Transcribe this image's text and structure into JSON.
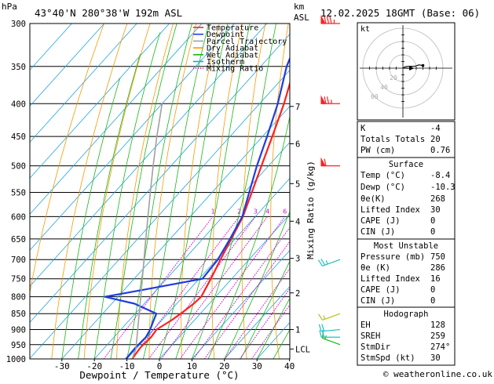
{
  "header": {
    "location": "43°40'N  280°38'W  192m  ASL",
    "datetime": "12.02.2025  18GMT  (Base: 06)",
    "hpa_unit": "hPa",
    "km_unit": "km",
    "asl_unit": "ASL"
  },
  "chart_data": {
    "type": "line",
    "title": "",
    "xlabel": "Dewpoint / Temperature (°C)",
    "ylabel": "Mixing Ratio (g/kg)",
    "xlim": [
      -40,
      40
    ],
    "ylim": [
      1000,
      300
    ],
    "pressure_ticks": [
      300,
      350,
      400,
      450,
      500,
      550,
      600,
      650,
      700,
      750,
      800,
      850,
      900,
      950,
      1000
    ],
    "temp_ticks": [
      -30,
      -20,
      -10,
      0,
      10,
      20,
      30,
      40
    ],
    "km_ticks": [
      {
        "label": "7",
        "p": 404
      },
      {
        "label": "6",
        "p": 462
      },
      {
        "label": "5",
        "p": 533
      },
      {
        "label": "4",
        "p": 610
      },
      {
        "label": "3",
        "p": 697
      },
      {
        "label": "2",
        "p": 789
      },
      {
        "label": "1",
        "p": 900
      },
      {
        "label": "LCL",
        "p": 965
      }
    ],
    "mixing_ratio_labels": [
      "1",
      "2",
      "3",
      "4",
      "6",
      "8",
      "10",
      "15",
      "20",
      "25"
    ],
    "mixing_ratio_values": [
      1,
      2,
      3,
      4,
      6,
      8,
      10,
      15,
      20,
      25
    ],
    "legend": [
      {
        "name": "Temperature",
        "color": "#ff2020",
        "dash": "solid"
      },
      {
        "name": "Dewpoint",
        "color": "#1f3ce0",
        "dash": "solid"
      },
      {
        "name": "Parcel Trajectory",
        "color": "#a0a0a0",
        "dash": "solid"
      },
      {
        "name": "Dry Adiabat",
        "color": "#f59a00",
        "dash": "solid"
      },
      {
        "name": "Wet Adiabat",
        "color": "#16b816",
        "dash": "solid"
      },
      {
        "name": "Isotherm",
        "color": "#1aa3e6",
        "dash": "solid"
      },
      {
        "name": "Mixing Ratio",
        "color": "#d000d0",
        "dash": "dotted"
      }
    ],
    "series": [
      {
        "name": "Temperature",
        "color": "#ff2020",
        "points": [
          [
            1000,
            -8.4
          ],
          [
            960,
            -9.0
          ],
          [
            925,
            -8.6
          ],
          [
            900,
            -9.0
          ],
          [
            870,
            -7.0
          ],
          [
            850,
            -6.0
          ],
          [
            820,
            -4.8
          ],
          [
            800,
            -4.4
          ],
          [
            750,
            -6.4
          ],
          [
            700,
            -8.8
          ],
          [
            650,
            -11.2
          ],
          [
            600,
            -13.8
          ],
          [
            550,
            -17.8
          ],
          [
            500,
            -22.2
          ],
          [
            450,
            -27.0
          ],
          [
            400,
            -32.5
          ],
          [
            350,
            -39.5
          ],
          [
            300,
            -47.8
          ]
        ]
      },
      {
        "name": "Dewpoint",
        "color": "#1f3ce0",
        "points": [
          [
            1000,
            -10.3
          ],
          [
            960,
            -10.5
          ],
          [
            925,
            -10.2
          ],
          [
            900,
            -11.0
          ],
          [
            870,
            -12.5
          ],
          [
            850,
            -13.5
          ],
          [
            820,
            -23.0
          ],
          [
            800,
            -34.0
          ],
          [
            780,
            -24.0
          ],
          [
            750,
            -9.0
          ],
          [
            700,
            -9.6
          ],
          [
            650,
            -11.6
          ],
          [
            600,
            -14.0
          ],
          [
            550,
            -18.6
          ],
          [
            500,
            -23.6
          ],
          [
            450,
            -28.6
          ],
          [
            400,
            -34.4
          ],
          [
            350,
            -42.0
          ],
          [
            300,
            -48.6
          ]
        ]
      },
      {
        "name": "Parcel Trajectory",
        "color": "#a0a0a0",
        "points": [
          [
            1000,
            -8.4
          ],
          [
            965,
            -10.0
          ],
          [
            900,
            -14.8
          ],
          [
            850,
            -18.8
          ],
          [
            800,
            -23.0
          ],
          [
            750,
            -27.5
          ],
          [
            700,
            -32.3
          ],
          [
            650,
            -37.5
          ],
          [
            600,
            -43.0
          ],
          [
            550,
            -49.0
          ],
          [
            500,
            -55.5
          ],
          [
            450,
            -62.5
          ],
          [
            400,
            -70.0
          ]
        ]
      }
    ]
  },
  "wind_barbs": [
    {
      "p": 950,
      "dir": 290,
      "spd": 15,
      "color": "#16b816"
    },
    {
      "p": 925,
      "dir": 270,
      "spd": 20,
      "color": "#1fc0c0"
    },
    {
      "p": 900,
      "dir": 265,
      "spd": 20,
      "color": "#1fc0c0"
    },
    {
      "p": 850,
      "dir": 250,
      "spd": 15,
      "color": "#b0c020"
    },
    {
      "p": 700,
      "dir": 250,
      "spd": 25,
      "color": "#1fc0c0"
    },
    {
      "p": 500,
      "dir": 270,
      "spd": 60,
      "color": "#ff2020"
    },
    {
      "p": 400,
      "dir": 270,
      "spd": 75,
      "color": "#ff2020"
    },
    {
      "p": 300,
      "dir": 270,
      "spd": 85,
      "color": "#ff2020"
    }
  ],
  "hodograph": {
    "label": "kt",
    "rings": [
      "20",
      "40",
      "60"
    ],
    "ring_kts": [
      20,
      40,
      60
    ],
    "trace": [
      [
        0,
        0
      ],
      [
        3,
        2
      ],
      [
        8,
        3
      ],
      [
        18,
        3
      ],
      [
        24,
        5
      ],
      [
        30,
        4
      ]
    ],
    "storm": [
      5,
      0
    ]
  },
  "indices": [
    {
      "label": "K",
      "value": "-4"
    },
    {
      "label": "Totals Totals",
      "value": "20"
    },
    {
      "label": "PW (cm)",
      "value": "0.76"
    }
  ],
  "surface": {
    "title": "Surface",
    "rows": [
      {
        "label": "Temp (°C)",
        "value": "-8.4"
      },
      {
        "label": "Dewp (°C)",
        "value": "-10.3"
      },
      {
        "label": "θe(K)",
        "value": "268"
      },
      {
        "label": "Lifted Index",
        "value": "30"
      },
      {
        "label": "CAPE (J)",
        "value": "0"
      },
      {
        "label": "CIN (J)",
        "value": "0"
      }
    ]
  },
  "most_unstable": {
    "title": "Most Unstable",
    "rows": [
      {
        "label": "Pressure (mb)",
        "value": "750"
      },
      {
        "label": "θe (K)",
        "value": "286"
      },
      {
        "label": "Lifted Index",
        "value": "16"
      },
      {
        "label": "CAPE (J)",
        "value": "0"
      },
      {
        "label": "CIN (J)",
        "value": "0"
      }
    ]
  },
  "hodograph_table": {
    "title": "Hodograph",
    "rows": [
      {
        "label": "EH",
        "value": "128"
      },
      {
        "label": "SREH",
        "value": "259"
      },
      {
        "label": "StmDir",
        "value": "274°"
      },
      {
        "label": "StmSpd (kt)",
        "value": "30"
      }
    ]
  },
  "footer": {
    "copyright": "© weatheronline.co.uk"
  }
}
